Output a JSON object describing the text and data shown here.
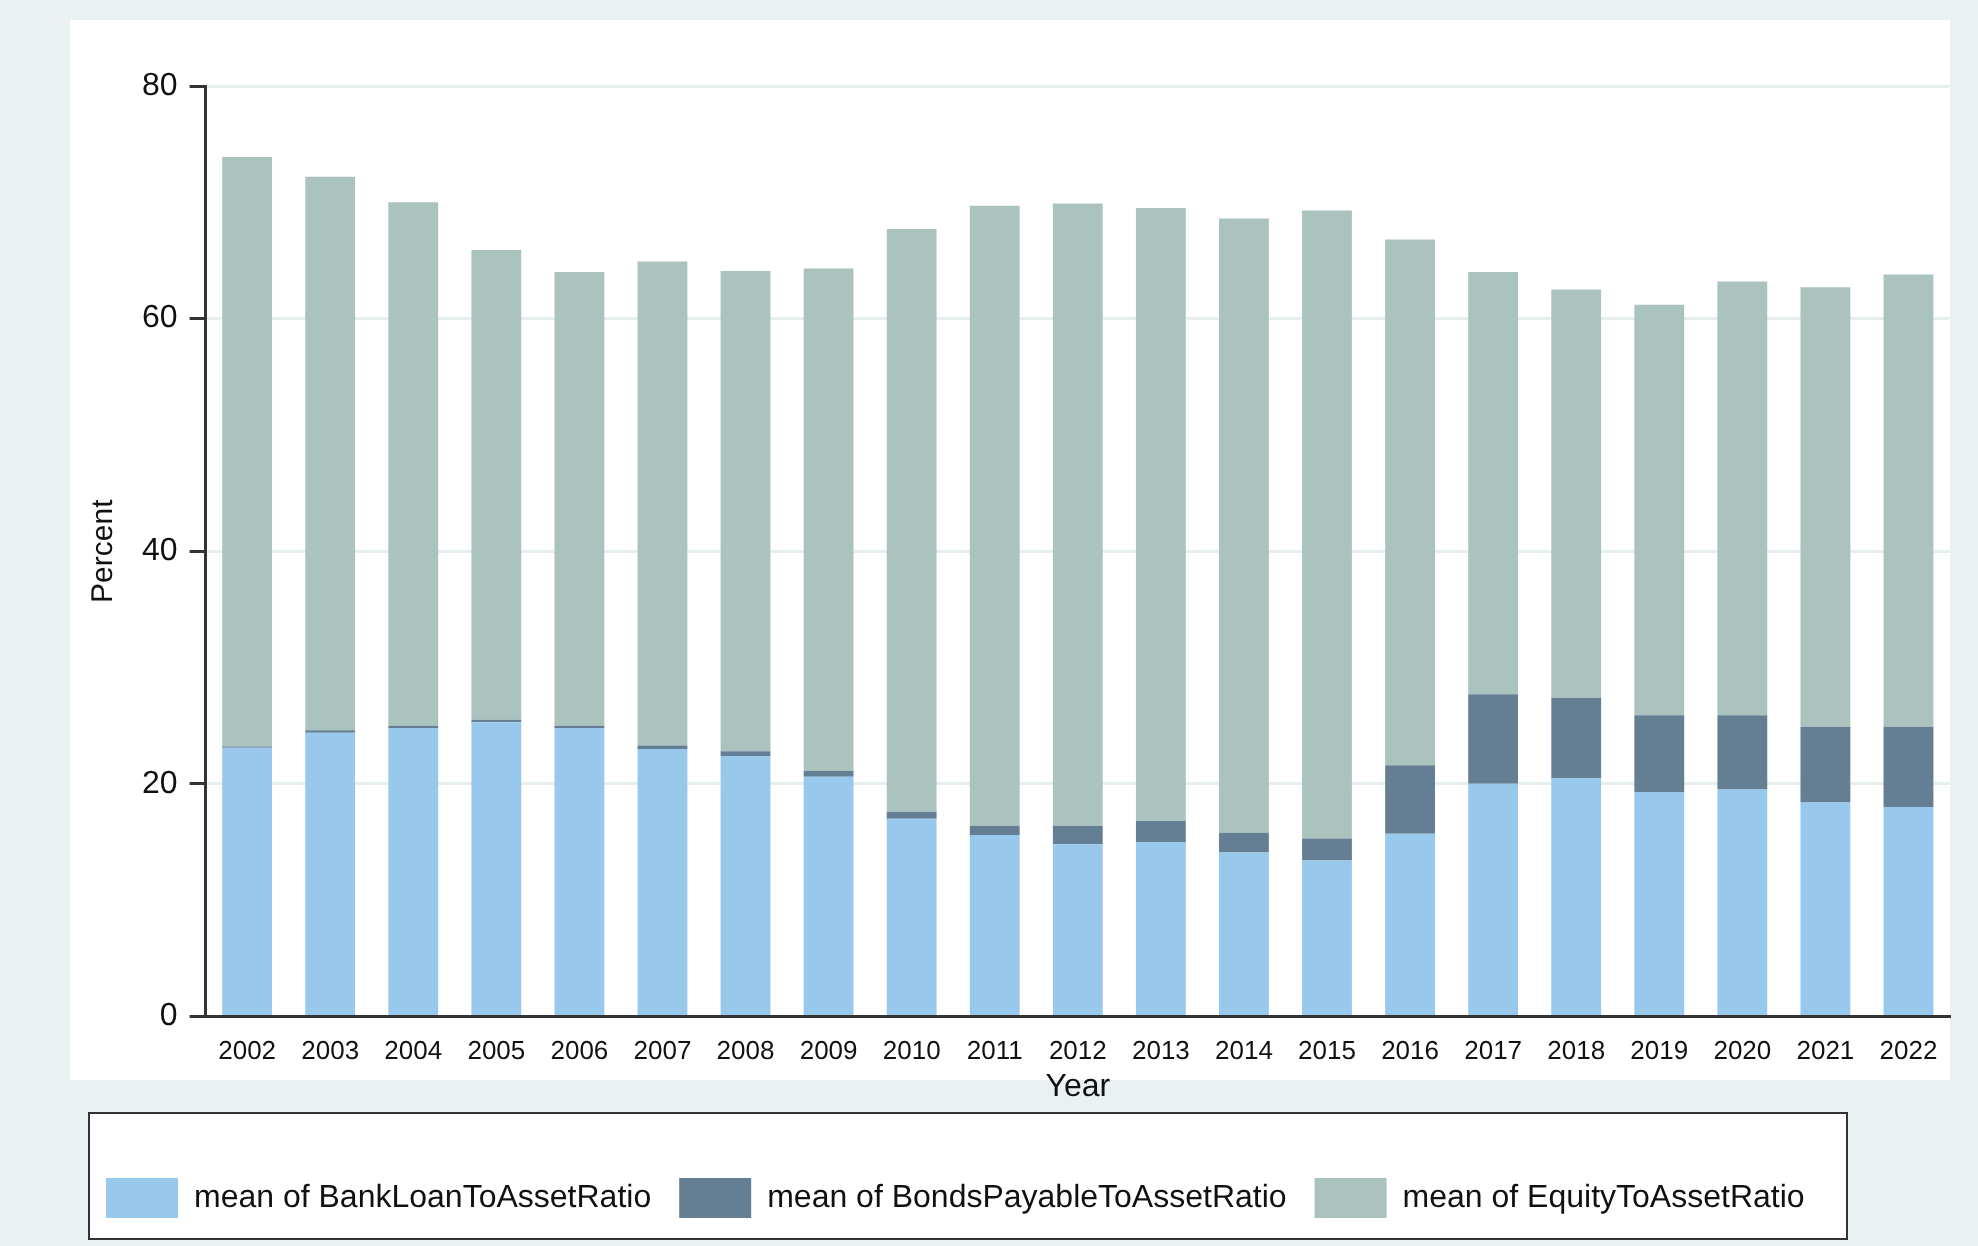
{
  "chart_data": {
    "type": "bar",
    "stacked": true,
    "xlabel": "Year",
    "ylabel": "Percent",
    "categories": [
      "2002",
      "2003",
      "2004",
      "2005",
      "2006",
      "2007",
      "2008",
      "2009",
      "2010",
      "2011",
      "2012",
      "2013",
      "2014",
      "2015",
      "2016",
      "2017",
      "2018",
      "2019",
      "2020",
      "2021",
      "2022"
    ],
    "series": [
      {
        "name": "mean of BankLoanToAssetRatio",
        "color": "#98c8eb",
        "values": [
          23.1,
          24.4,
          24.8,
          25.3,
          24.8,
          23.0,
          22.4,
          20.6,
          17.0,
          15.6,
          14.8,
          15.0,
          14.1,
          13.4,
          15.7,
          20.0,
          20.5,
          19.3,
          19.5,
          18.4,
          18.0
        ]
      },
      {
        "name": "mean of BondsPayableToAssetRatio",
        "color": "#647f94",
        "values": [
          0.1,
          0.2,
          0.2,
          0.2,
          0.2,
          0.3,
          0.4,
          0.5,
          0.6,
          0.8,
          1.6,
          1.8,
          1.7,
          1.9,
          5.9,
          7.7,
          6.9,
          6.6,
          6.4,
          6.5,
          6.9
        ]
      },
      {
        "name": "mean of EquityToAssetRatio",
        "color": "#abc3bf",
        "values": [
          50.7,
          47.6,
          45.0,
          40.4,
          39.0,
          41.6,
          41.3,
          43.2,
          50.1,
          53.3,
          53.5,
          52.7,
          52.8,
          54.0,
          45.2,
          36.3,
          35.1,
          35.3,
          37.3,
          37.8,
          38.9
        ]
      }
    ],
    "ylim": [
      0,
      80
    ],
    "yticks": [
      0,
      20,
      40,
      60,
      80
    ],
    "grid": "y",
    "legend": "bottom"
  }
}
